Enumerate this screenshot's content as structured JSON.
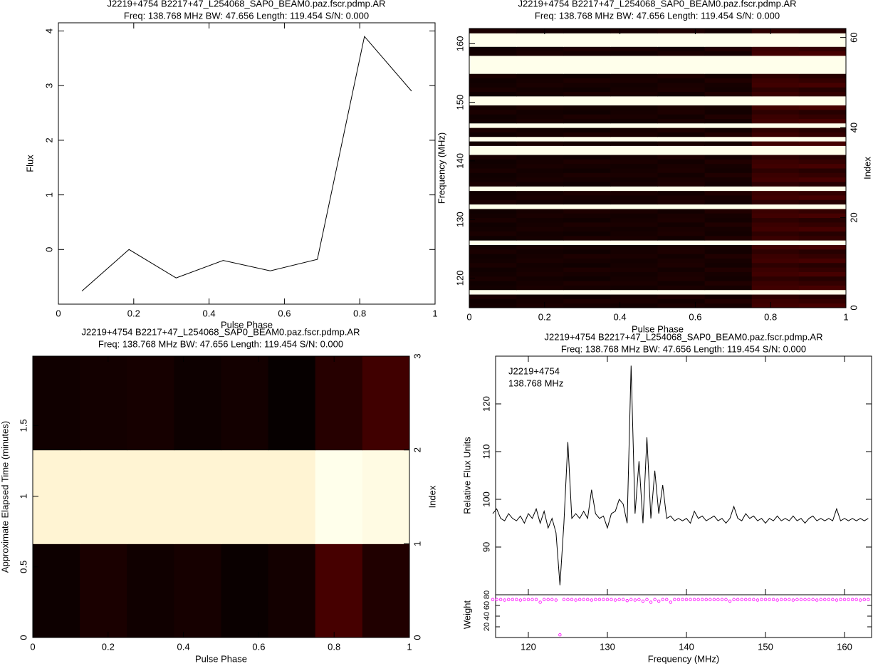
{
  "chart_data": [
    {
      "type": "line",
      "title": "J2219+4754  B2217+47_L254068_SAP0_BEAM0.paz.fscr.pdmp.AR",
      "subtitle": "Freq: 138.768 MHz BW: 47.656 Length: 119.454 S/N: 0.000",
      "xlabel": "Pulse Phase",
      "ylabel": "Flux",
      "x": [
        0.0625,
        0.1875,
        0.3125,
        0.4375,
        0.5625,
        0.6875,
        0.8125,
        0.9375
      ],
      "values": [
        -0.76,
        0.0,
        -0.52,
        -0.2,
        -0.39,
        -0.18,
        3.9,
        2.9
      ],
      "color": "#000000",
      "xlim": [
        0,
        1
      ],
      "xticks": [
        0,
        0.2,
        0.4,
        0.6,
        0.8,
        1
      ],
      "ylim": [
        -1.0,
        4.15
      ],
      "yticks": [
        0,
        1,
        2,
        3,
        4
      ]
    },
    {
      "type": "heatmap",
      "title": "J2219+4754  B2217+47_L254068_SAP0_BEAM0.paz.fscr.pdmp.AR",
      "subtitle": "Freq: 138.768 MHz BW: 47.656 Length: 119.454 S/N: 0.000",
      "xlabel": "Pulse Phase",
      "ylabel": "Frequency (MHz)",
      "y2label": "Index",
      "colormap": "heat",
      "xlim": [
        0,
        1
      ],
      "xticks": [
        0,
        0.2,
        0.4,
        0.6,
        0.8,
        1
      ],
      "ylim": [
        114.94,
        162.6
      ],
      "yticks": [
        120,
        130,
        140,
        150,
        160
      ],
      "y2lim": [
        0,
        62
      ],
      "y2ticks": [
        0,
        20,
        40,
        60
      ],
      "z": [
        [
          0.06,
          0.08,
          0.07,
          0.06,
          0.08,
          0.07,
          0.2,
          0.22
        ],
        [
          0.05,
          0.07,
          0.09,
          0.08,
          0.06,
          0.1,
          0.18,
          0.16
        ],
        [
          0.08,
          0.06,
          0.05,
          0.07,
          0.09,
          0.06,
          0.14,
          0.12
        ],
        [
          1,
          1,
          1,
          1,
          1,
          1,
          1,
          1
        ],
        [
          0.06,
          0.08,
          0.07,
          0.06,
          0.08,
          0.07,
          0.2,
          0.22
        ],
        [
          0.05,
          0.07,
          0.09,
          0.08,
          0.06,
          0.1,
          0.18,
          0.16
        ],
        [
          0.08,
          0.06,
          0.05,
          0.07,
          0.09,
          0.06,
          0.14,
          0.12
        ],
        [
          0.06,
          0.08,
          0.07,
          0.06,
          0.08,
          0.07,
          0.2,
          0.22
        ],
        [
          0.05,
          0.07,
          0.09,
          0.08,
          0.06,
          0.1,
          0.18,
          0.16
        ],
        [
          0.08,
          0.06,
          0.05,
          0.07,
          0.09,
          0.06,
          0.14,
          0.12
        ],
        [
          0.06,
          0.08,
          0.07,
          0.06,
          0.08,
          0.07,
          0.2,
          0.22
        ],
        [
          0.05,
          0.07,
          0.09,
          0.08,
          0.06,
          0.1,
          0.18,
          0.16
        ],
        [
          0.08,
          0.06,
          0.05,
          0.07,
          0.09,
          0.06,
          0.14,
          0.12
        ],
        [
          0.06,
          0.08,
          0.07,
          0.06,
          0.08,
          0.07,
          0.2,
          0.22
        ],
        [
          1,
          1,
          1,
          1,
          1,
          1,
          1,
          1
        ],
        [
          0.05,
          0.07,
          0.09,
          0.08,
          0.06,
          0.1,
          0.18,
          0.16
        ],
        [
          0.08,
          0.06,
          0.05,
          0.07,
          0.09,
          0.06,
          0.14,
          0.12
        ],
        [
          0.06,
          0.08,
          0.07,
          0.06,
          0.08,
          0.07,
          0.2,
          0.22
        ],
        [
          0.05,
          0.07,
          0.09,
          0.08,
          0.06,
          0.1,
          0.18,
          0.16
        ],
        [
          0.08,
          0.06,
          0.05,
          0.07,
          0.09,
          0.06,
          0.14,
          0.12
        ],
        [
          0.06,
          0.08,
          0.07,
          0.06,
          0.08,
          0.07,
          0.2,
          0.22
        ],
        [
          0.05,
          0.07,
          0.09,
          0.08,
          0.06,
          0.1,
          0.18,
          0.16
        ],
        [
          1,
          1,
          1,
          1,
          1,
          1,
          1,
          1
        ],
        [
          0.08,
          0.06,
          0.05,
          0.07,
          0.09,
          0.06,
          0.14,
          0.12
        ],
        [
          0.06,
          0.08,
          0.07,
          0.06,
          0.08,
          0.07,
          0.2,
          0.22
        ],
        [
          0.05,
          0.07,
          0.09,
          0.08,
          0.06,
          0.1,
          0.18,
          0.16
        ],
        [
          1,
          1,
          1,
          1,
          1,
          1,
          1,
          1
        ],
        [
          0.08,
          0.06,
          0.05,
          0.07,
          0.09,
          0.06,
          0.14,
          0.12
        ],
        [
          0.06,
          0.08,
          0.07,
          0.06,
          0.08,
          0.07,
          0.2,
          0.22
        ],
        [
          0.05,
          0.07,
          0.09,
          0.08,
          0.06,
          0.1,
          0.18,
          0.16
        ],
        [
          0.08,
          0.06,
          0.05,
          0.07,
          0.09,
          0.06,
          0.14,
          0.12
        ],
        [
          0.06,
          0.08,
          0.07,
          0.06,
          0.08,
          0.07,
          0.2,
          0.22
        ],
        [
          0.05,
          0.07,
          0.09,
          0.08,
          0.06,
          0.1,
          0.18,
          0.16
        ],
        [
          0.08,
          0.06,
          0.05,
          0.07,
          0.09,
          0.06,
          0.14,
          0.12
        ],
        [
          1,
          1,
          1,
          1,
          1,
          1,
          1,
          1
        ],
        [
          1,
          1,
          1,
          1,
          1,
          1,
          1,
          1
        ],
        [
          0.06,
          0.08,
          0.07,
          0.06,
          0.08,
          0.07,
          0.2,
          0.22
        ],
        [
          1,
          1,
          1,
          1,
          1,
          1,
          1,
          1
        ],
        [
          0.05,
          0.07,
          0.09,
          0.08,
          0.06,
          0.1,
          0.18,
          0.16
        ],
        [
          0.08,
          0.06,
          0.05,
          0.07,
          0.09,
          0.06,
          0.14,
          0.12
        ],
        [
          1,
          1,
          1,
          1,
          1,
          1,
          1,
          1
        ],
        [
          0.06,
          0.08,
          0.07,
          0.06,
          0.08,
          0.07,
          0.2,
          0.22
        ],
        [
          0.05,
          0.07,
          0.09,
          0.08,
          0.06,
          0.1,
          0.18,
          0.16
        ],
        [
          0.08,
          0.06,
          0.05,
          0.07,
          0.09,
          0.06,
          0.14,
          0.12
        ],
        [
          0.06,
          0.08,
          0.07,
          0.06,
          0.08,
          0.07,
          0.2,
          0.22
        ],
        [
          1,
          1,
          1,
          1,
          1,
          1,
          1,
          1
        ],
        [
          1,
          1,
          1,
          1,
          1,
          1,
          1,
          1
        ],
        [
          0.05,
          0.07,
          0.09,
          0.08,
          0.06,
          0.1,
          0.18,
          0.16
        ],
        [
          0.08,
          0.06,
          0.05,
          0.07,
          0.09,
          0.06,
          0.14,
          0.12
        ],
        [
          0.06,
          0.08,
          0.07,
          0.06,
          0.08,
          0.07,
          0.2,
          0.22
        ],
        [
          0.05,
          0.07,
          0.09,
          0.08,
          0.06,
          0.1,
          0.18,
          0.16
        ],
        [
          0.08,
          0.06,
          0.05,
          0.07,
          0.09,
          0.06,
          0.14,
          0.12
        ],
        [
          1,
          1,
          1,
          1,
          1,
          1,
          1,
          1
        ],
        [
          1,
          1,
          1,
          1,
          1,
          1,
          1,
          1
        ],
        [
          1,
          1,
          1,
          1,
          1,
          1,
          1,
          1
        ],
        [
          1,
          1,
          1,
          1,
          1,
          1,
          1,
          1
        ],
        [
          0.06,
          0.08,
          0.07,
          0.06,
          0.08,
          0.07,
          0.2,
          0.22
        ],
        [
          0.05,
          0.07,
          0.09,
          0.08,
          0.06,
          0.1,
          0.18,
          0.16
        ],
        [
          1,
          1,
          1,
          1,
          1,
          1,
          1,
          1
        ],
        [
          1,
          1,
          1,
          1,
          1,
          1,
          1,
          1
        ],
        [
          1,
          1,
          1,
          1,
          1,
          1,
          1,
          1
        ],
        [
          0.08,
          0.06,
          0.05,
          0.07,
          0.09,
          0.06,
          0.14,
          0.12
        ]
      ]
    },
    {
      "type": "heatmap",
      "title": "J2219+4754  B2217+47_L254068_SAP0_BEAM0.paz.fscr.pdmp.AR",
      "subtitle": "Freq: 138.768 MHz BW: 47.656 Length: 119.454 S/N: 0.000",
      "xlabel": "Pulse Phase",
      "ylabel": "Approximate Elapsed Time (minutes)",
      "y2label": "Index",
      "colormap": "heat",
      "xlim": [
        0,
        1
      ],
      "xticks": [
        0,
        0.2,
        0.4,
        0.6,
        0.8,
        1
      ],
      "ylim": [
        0,
        1.991
      ],
      "yticks": [
        0,
        0.5,
        1,
        1.5
      ],
      "y2lim": [
        0,
        3
      ],
      "y2ticks": [
        0,
        1,
        2,
        3
      ],
      "z": [
        [
          0.04,
          0.08,
          0.05,
          0.07,
          0.03,
          0.06,
          0.22,
          0.1
        ],
        [
          0.97,
          0.97,
          0.97,
          0.97,
          0.97,
          0.97,
          1.0,
          0.99
        ],
        [
          0.05,
          0.06,
          0.07,
          0.04,
          0.06,
          0.02,
          0.12,
          0.2
        ]
      ]
    },
    {
      "type": "line",
      "title": "J2219+4754  B2217+47_L254068_SAP0_BEAM0.paz.fscr.pdmp.AR",
      "subtitle": "Freq: 138.768 MHz BW: 47.656 Length: 119.454 S/N: 0.000",
      "annotations": [
        "J2219+4754",
        "138.768 MHz"
      ],
      "xlabel": "Frequency (MHz)",
      "ylabel": "Relative Flux Units",
      "color": "#000000",
      "xlim": [
        115.86,
        163.42
      ],
      "xticks": [
        120,
        130,
        140,
        150,
        160
      ],
      "ylim": [
        80,
        130
      ],
      "yticks": [
        90,
        100,
        110,
        120
      ],
      "x": [
        115.5,
        116,
        116.5,
        117,
        117.5,
        118,
        118.5,
        119,
        119.5,
        120,
        120.5,
        121,
        121.5,
        122,
        122.5,
        123,
        123.5,
        124,
        124.5,
        125,
        125.5,
        126,
        126.5,
        127,
        127.5,
        128,
        128.5,
        129,
        129.5,
        130,
        130.5,
        131,
        131.5,
        132,
        132.5,
        133,
        133.5,
        134,
        134.5,
        135,
        135.5,
        136,
        136.5,
        137,
        137.5,
        138,
        138.5,
        139,
        139.5,
        140,
        140.5,
        141,
        141.5,
        142,
        142.5,
        143,
        143.5,
        144,
        144.5,
        145,
        145.5,
        146,
        146.5,
        147,
        147.5,
        148,
        148.5,
        149,
        149.5,
        150,
        150.5,
        151,
        151.5,
        152,
        152.5,
        153,
        153.5,
        154,
        154.5,
        155,
        155.5,
        156,
        156.5,
        157,
        157.5,
        158,
        158.5,
        159,
        159.5,
        160,
        160.5,
        161,
        161.5,
        162,
        162.5,
        163
      ],
      "values": [
        97,
        98,
        96,
        95.5,
        97,
        96,
        95.5,
        96.5,
        95,
        97,
        96,
        98,
        95,
        97.5,
        94,
        96,
        93,
        82,
        95,
        112,
        96,
        97,
        96,
        97.5,
        96,
        102,
        97,
        96,
        96.5,
        94,
        97,
        97.5,
        100,
        99,
        95,
        128,
        97,
        108,
        95,
        113,
        96,
        106,
        97,
        103,
        96,
        96.5,
        95.5,
        96,
        95.5,
        96,
        95,
        97.5,
        96,
        96.5,
        95.5,
        96,
        96.5,
        95.5,
        96,
        95,
        96,
        98.5,
        96,
        95.5,
        97,
        96,
        96.5,
        95.5,
        96,
        95,
        96,
        95.5,
        96.5,
        95.5,
        96,
        95.5,
        96.5,
        95.5,
        96,
        95,
        96,
        96.5,
        95.5,
        96,
        95.5,
        96,
        95.5,
        98,
        95.5,
        96,
        95.5,
        96,
        95.5,
        96,
        95.5,
        96
      ],
      "weights": {
        "ylabel": "Weight",
        "color": "#ff00ff",
        "ylim": [
          0,
          80
        ],
        "yticks": [
          20,
          40,
          60,
          80
        ],
        "values": [
          71,
          71,
          71,
          70,
          71,
          71,
          71,
          70,
          71,
          71,
          71,
          71,
          66,
          71,
          71,
          71,
          70,
          5,
          71,
          71,
          71,
          70,
          71,
          71,
          71,
          70,
          71,
          71,
          71,
          71,
          71,
          70,
          71,
          71,
          69,
          71,
          70,
          71,
          68,
          71,
          66,
          71,
          68,
          71,
          71,
          66,
          71,
          71,
          71,
          71,
          71,
          71,
          71,
          71,
          71,
          71,
          71,
          71,
          71,
          71,
          68,
          71,
          71,
          71,
          71,
          71,
          71,
          70,
          71,
          71,
          71,
          71,
          70,
          71,
          71,
          71,
          70,
          71,
          71,
          71,
          71,
          71,
          70,
          71,
          71,
          71,
          71,
          70,
          71,
          71,
          71,
          71,
          71,
          70,
          71,
          71
        ]
      }
    }
  ]
}
